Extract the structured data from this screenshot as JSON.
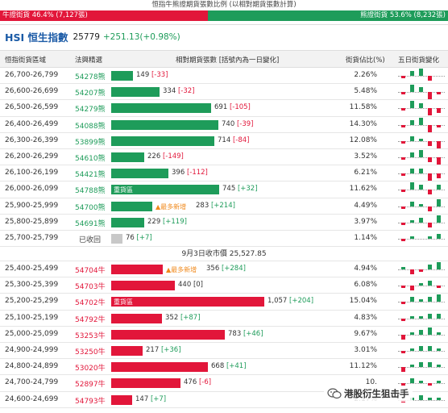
{
  "ratio": {
    "title": "恒指牛熊證期貨張數比例 (以相對期貨張數計算)",
    "bull_label": "牛證街貨 46.4% (7,127張)",
    "bear_label": "熊證街貨 53.6% (8,232張)",
    "bull_fraction": 0.464
  },
  "header": {
    "name": "HSI 恒生指數",
    "value": "25779",
    "change": "+251.13(+0.98%)"
  },
  "columns": {
    "range": "恒指街貨區域",
    "code": "法興精選",
    "bar": "相對期貨張數 [括號內為一日變化]",
    "pct": "街貨佔比(%)",
    "spark": "五日街貨變化"
  },
  "colors": {
    "bull": "#e2163a",
    "bear": "#1e9c5a",
    "recovered": "#c8c8c8",
    "new": "#f08a1d"
  },
  "icons": {
    "watermark": "wechat-icon"
  },
  "bar_max": 1057,
  "bear_rows": [
    {
      "range": "26,700-26,799",
      "code": "54278熊",
      "amount": "149",
      "change": "[-33]",
      "pct": "2.26%",
      "bar_value": 149,
      "spark": [
        -1,
        2,
        3,
        -2,
        0
      ]
    },
    {
      "range": "26,600-26,699",
      "code": "54207熊",
      "amount": "334",
      "change": "[-32]",
      "pct": "5.48%",
      "bar_value": 334,
      "spark": [
        -1,
        3,
        2,
        -3,
        -1
      ]
    },
    {
      "range": "26,500-26,599",
      "code": "54279熊",
      "amount": "691",
      "change": "[-105]",
      "pct": "11.58%",
      "bar_value": 691,
      "spark": [
        -1,
        3,
        2,
        -3,
        -2
      ]
    },
    {
      "range": "26,400-26,499",
      "code": "54088熊",
      "amount": "740",
      "change": "[-39]",
      "pct": "14.30%",
      "bar_value": 740,
      "spark": [
        -1,
        2,
        3,
        -3,
        -1
      ]
    },
    {
      "range": "26,300-26,399",
      "code": "53899熊",
      "amount": "714",
      "change": "[-84]",
      "pct": "12.08%",
      "bar_value": 714,
      "spark": [
        -1,
        2,
        1,
        -2,
        -3
      ]
    },
    {
      "range": "26,200-26,299",
      "code": "54610熊",
      "amount": "226",
      "change": "[-149]",
      "pct": "3.52%",
      "bar_value": 226,
      "spark": [
        -1,
        2,
        3,
        -2,
        -3
      ]
    },
    {
      "range": "26,100-26,199",
      "code": "54421熊",
      "amount": "396",
      "change": "[-112]",
      "pct": "6.21%",
      "bar_value": 396,
      "spark": [
        -1,
        2,
        2,
        -3,
        -2
      ]
    },
    {
      "range": "26,000-26,099",
      "code": "54788熊",
      "amount": "745",
      "change": "[+32]",
      "pct": "11.62%",
      "bar_value": 745,
      "tag": "重貨區",
      "spark": [
        -1,
        3,
        2,
        -2,
        2
      ]
    },
    {
      "range": "25,900-25,999",
      "code": "54700熊",
      "amount": "283",
      "change": "[+214]",
      "pct": "4.49%",
      "bar_value": 283,
      "new_tag": "▲最多新增",
      "spark": [
        -1,
        2,
        1,
        -2,
        3
      ]
    },
    {
      "range": "25,800-25,899",
      "code": "54691熊",
      "amount": "229",
      "change": "[+119]",
      "pct": "3.97%",
      "bar_value": 229,
      "spark": [
        -1,
        1,
        2,
        -2,
        3
      ]
    },
    {
      "range": "25,700-25,799",
      "code": "已收回",
      "amount": "76",
      "change": "[+7]",
      "pct": "1.14%",
      "bar_value": 76,
      "recovered": true,
      "spark": [
        -1,
        1,
        0,
        1,
        2
      ]
    }
  ],
  "divider": "9月3日收市價 25,527.85",
  "bull_rows": [
    {
      "range": "25,400-25,499",
      "code": "54704牛",
      "amount": "356",
      "change": "[+284]",
      "pct": "4.94%",
      "bar_value": 356,
      "new_tag": "▲最多新增",
      "spark": [
        1,
        -2,
        -1,
        2,
        3
      ]
    },
    {
      "range": "25,300-25,399",
      "code": "54703牛",
      "amount": "440",
      "change": "[0]",
      "pct": "6.08%",
      "bar_value": 440,
      "spark": [
        -1,
        -2,
        1,
        2,
        -1
      ]
    },
    {
      "range": "25,200-25,299",
      "code": "54702牛",
      "amount": "1,057",
      "change": "[+204]",
      "pct": "15.04%",
      "bar_value": 1057,
      "tag": "重貨區",
      "spark": [
        -1,
        2,
        1,
        2,
        3
      ]
    },
    {
      "range": "25,100-25,199",
      "code": "54792牛",
      "amount": "352",
      "change": "[+87]",
      "pct": "4.83%",
      "bar_value": 352,
      "spark": [
        -1,
        1,
        1,
        2,
        2
      ]
    },
    {
      "range": "25,000-25,099",
      "code": "53253牛",
      "amount": "783",
      "change": "[+46]",
      "pct": "9.67%",
      "bar_value": 783,
      "spark": [
        -2,
        1,
        2,
        3,
        1
      ]
    },
    {
      "range": "24,900-24,999",
      "code": "53250牛",
      "amount": "217",
      "change": "[+36]",
      "pct": "3.01%",
      "bar_value": 217,
      "spark": [
        -1,
        1,
        2,
        2,
        1
      ]
    },
    {
      "range": "24,800-24,899",
      "code": "53020牛",
      "amount": "668",
      "change": "[+41]",
      "pct": "11.12%",
      "bar_value": 668,
      "spark": [
        -2,
        1,
        2,
        2,
        1
      ]
    },
    {
      "range": "24,700-24,799",
      "code": "52897牛",
      "amount": "476",
      "change": "[-6]",
      "pct": "10.",
      "bar_value": 476,
      "spark": [
        -1,
        2,
        1,
        -1,
        1
      ]
    },
    {
      "range": "24,600-24,699",
      "code": "54793牛",
      "amount": "147",
      "change": "[+7]",
      "pct": "2.17%",
      "bar_value": 147,
      "spark": [
        -1,
        1,
        2,
        1,
        1
      ]
    }
  ],
  "watermark": {
    "text": "港股衍生狙击手"
  }
}
